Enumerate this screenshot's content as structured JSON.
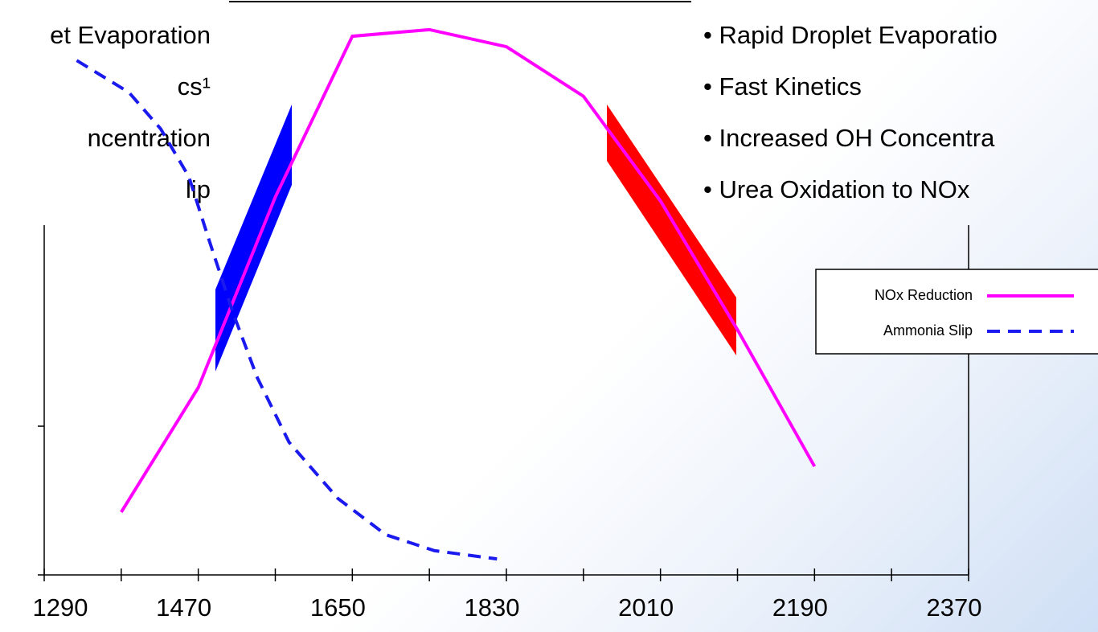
{
  "chart_data": {
    "type": "line",
    "left_text": [
      "et Evaporation",
      "cs¹",
      "ncentration",
      "lip"
    ],
    "right_text": [
      "• Rapid Droplet Evaporatio",
      "• Fast Kinetics",
      "• Increased OH Concentra",
      "• Urea Oxidation to NOx"
    ],
    "series": [
      {
        "name": "NOx Reduction",
        "color": "#ff00ff",
        "dash": false,
        "x": [
          1380,
          1470,
          1560,
          1650,
          1740,
          1830,
          1920,
          2010,
          2100,
          2190
        ],
        "values": [
          11.4,
          34,
          68.6,
          97.8,
          99,
          95.9,
          86.9,
          67.9,
          44.5,
          19.7
        ]
      },
      {
        "name": "Ammonia Slip",
        "color": "#1a1aee",
        "dash": true,
        "x": [
          1328,
          1389,
          1426,
          1459,
          1483,
          1511,
          1539,
          1576,
          1633,
          1689,
          1746,
          1819
        ],
        "values": [
          93.4,
          87.6,
          81,
          72.3,
          60.6,
          47.4,
          35.8,
          24.1,
          13.9,
          7.3,
          4.4,
          2.9
        ]
      }
    ],
    "xlim": [
      1290,
      2370
    ],
    "xticks": [
      1290,
      1470,
      1650,
      1830,
      2010,
      2190,
      2370
    ],
    "xminorticks": [
      1380,
      1560,
      1740,
      1920,
      2100,
      2280
    ],
    "ylim": [
      0,
      100
    ],
    "yticks": [
      0,
      27
    ]
  }
}
